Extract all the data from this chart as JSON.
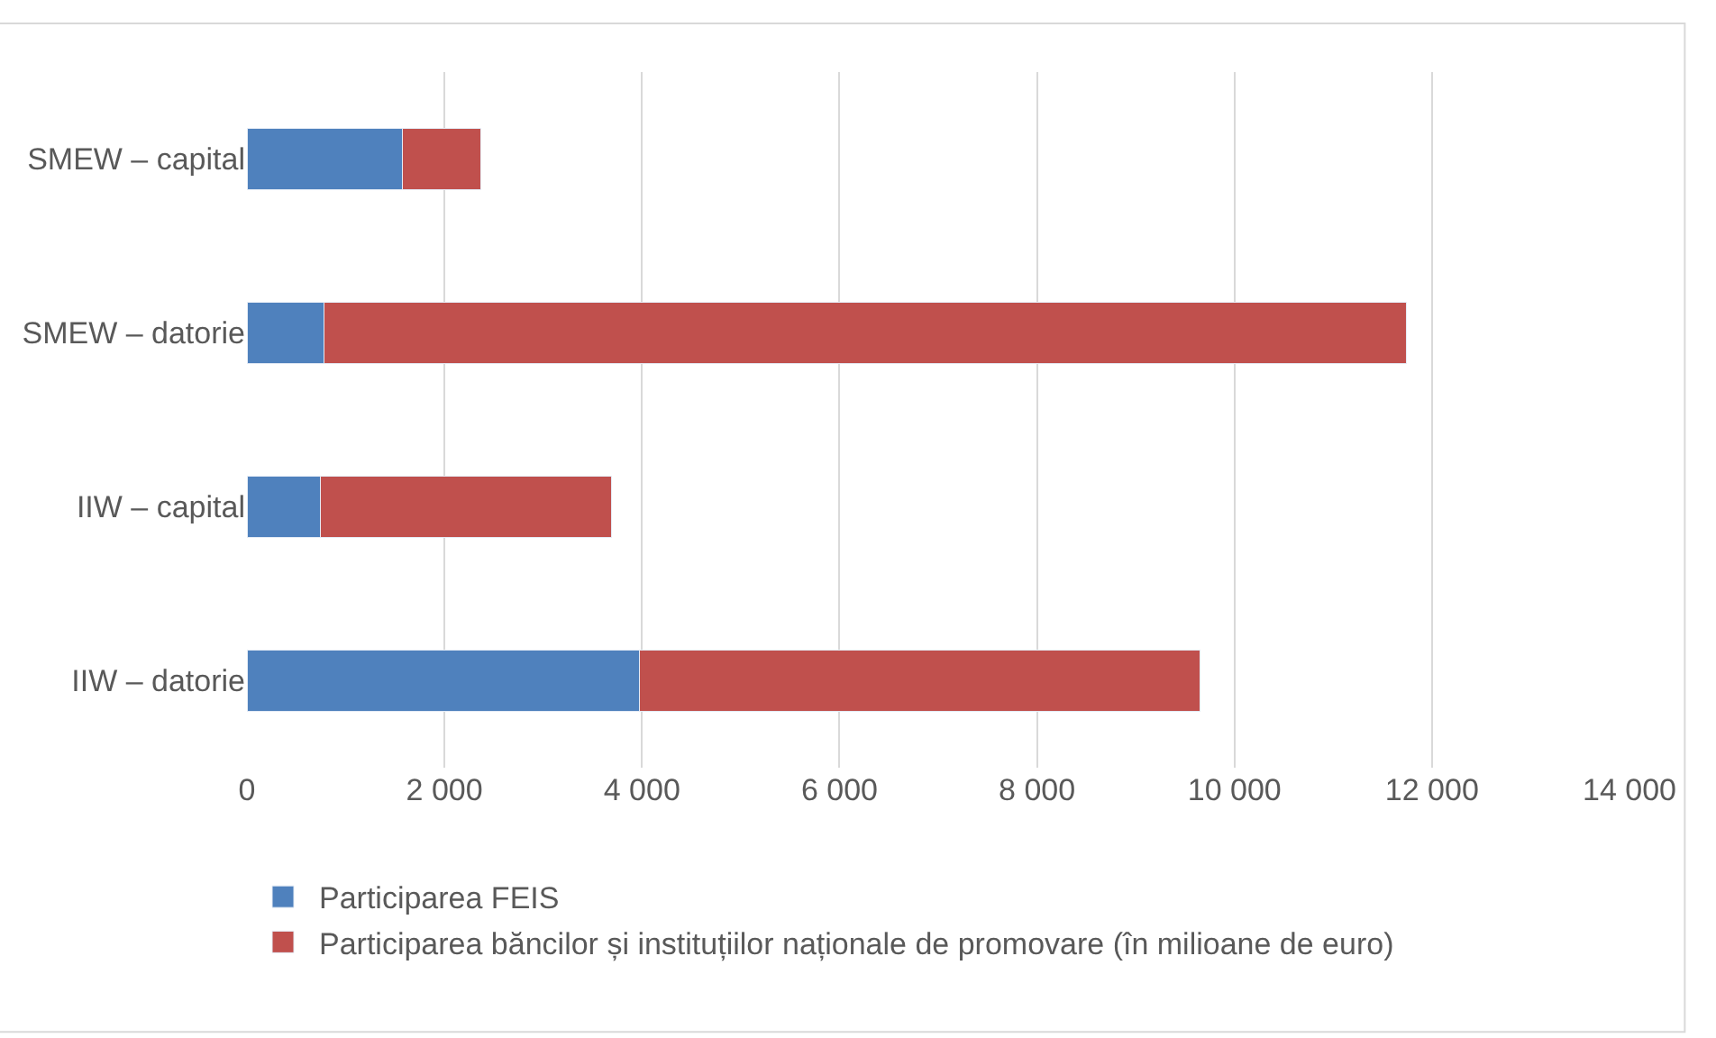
{
  "chart_data": {
    "type": "bar",
    "orientation": "horizontal",
    "stacked": true,
    "categories": [
      "SMEW – capital",
      "SMEW – datorie",
      "IIW – capital",
      "IIW – datorie"
    ],
    "series": [
      {
        "name": "Participarea FEIS",
        "color": "#4f81bd",
        "values": [
          1570,
          780,
          740,
          3970
        ]
      },
      {
        "name": "Participarea băncilor și instituțiilor naționale de promovare (în milioane de euro)",
        "color": "#c0504d",
        "values": [
          800,
          10960,
          2950,
          5680
        ]
      }
    ],
    "xlim": [
      0,
      14000
    ],
    "xticks": [
      {
        "value": 0,
        "label": "0"
      },
      {
        "value": 2000,
        "label": "2 000"
      },
      {
        "value": 4000,
        "label": "4 000"
      },
      {
        "value": 6000,
        "label": "6 000"
      },
      {
        "value": 8000,
        "label": "8 000"
      },
      {
        "value": 10000,
        "label": "10 000"
      },
      {
        "value": 12000,
        "label": "12 000"
      },
      {
        "value": 14000,
        "label": "14 000"
      }
    ],
    "grid": "x",
    "legend": "bottom"
  }
}
